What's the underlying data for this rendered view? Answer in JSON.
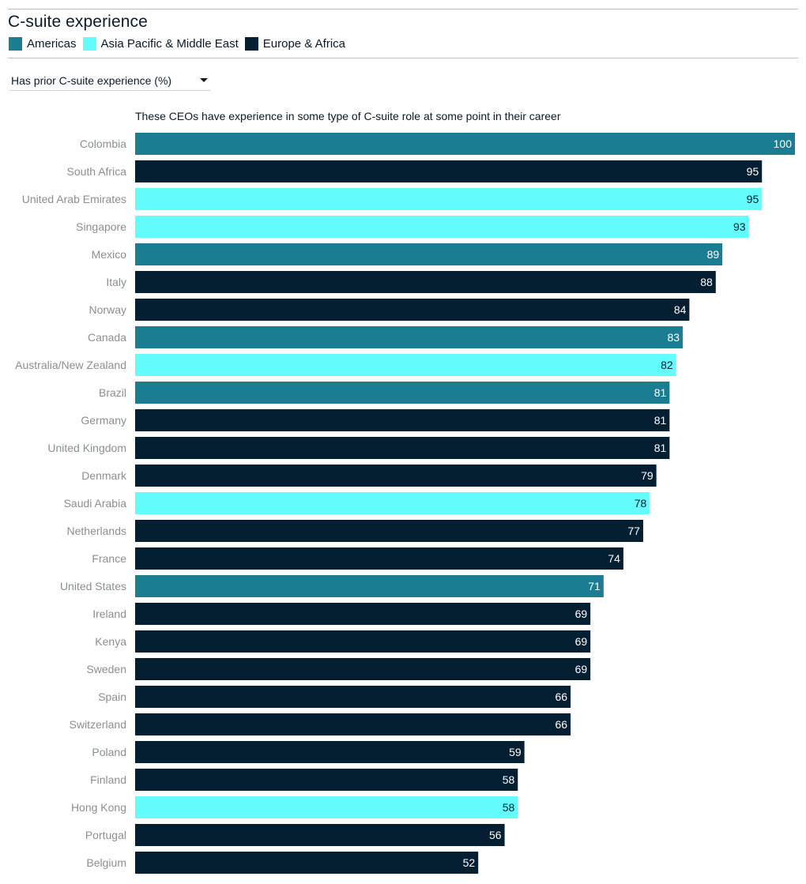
{
  "title": "C-suite experience",
  "legend": [
    {
      "label": "Americas",
      "color": "#1b7d92"
    },
    {
      "label": "Asia Pacific & Middle East",
      "color": "#62fdfc"
    },
    {
      "label": "Europe & Africa",
      "color": "#041e32"
    }
  ],
  "dropdown": {
    "selected": "Has prior C-suite experience (%)"
  },
  "chart_data": {
    "type": "bar",
    "orientation": "horizontal",
    "subtitle": "These CEOs have experience in some type of C-suite role at some point in their career",
    "xlim": [
      0,
      100
    ],
    "categories": [
      "Colombia",
      "South Africa",
      "United Arab Emirates",
      "Singapore",
      "Mexico",
      "Italy",
      "Norway",
      "Canada",
      "Australia/New Zealand",
      "Brazil",
      "Germany",
      "United Kingdom",
      "Denmark",
      "Saudi Arabia",
      "Netherlands",
      "France",
      "United States",
      "Ireland",
      "Kenya",
      "Sweden",
      "Spain",
      "Switzerland",
      "Poland",
      "Finland",
      "Hong Kong",
      "Portugal",
      "Belgium"
    ],
    "values": [
      100,
      95,
      95,
      93,
      89,
      88,
      84,
      83,
      82,
      81,
      81,
      81,
      79,
      78,
      77,
      74,
      71,
      69,
      69,
      69,
      66,
      66,
      59,
      58,
      58,
      56,
      52
    ],
    "regions": [
      "Americas",
      "Europe & Africa",
      "Asia Pacific & Middle East",
      "Asia Pacific & Middle East",
      "Americas",
      "Europe & Africa",
      "Europe & Africa",
      "Americas",
      "Asia Pacific & Middle East",
      "Americas",
      "Europe & Africa",
      "Europe & Africa",
      "Europe & Africa",
      "Asia Pacific & Middle East",
      "Europe & Africa",
      "Europe & Africa",
      "Americas",
      "Europe & Africa",
      "Europe & Africa",
      "Europe & Africa",
      "Europe & Africa",
      "Europe & Africa",
      "Europe & Africa",
      "Europe & Africa",
      "Asia Pacific & Middle East",
      "Europe & Africa",
      "Europe & Africa"
    ]
  }
}
